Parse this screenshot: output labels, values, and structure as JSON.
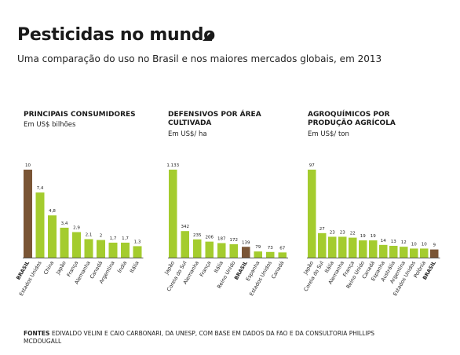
{
  "header": {
    "title": "Pesticidas no mundo",
    "subtitle": "Uma comparação do uso no Brasil e nos maiores mercados globais, em 2013"
  },
  "footer": {
    "source_label": "FONTES",
    "source_text": "EDIVALDO VELINI E CAIO CARBONARI, DA UNESP, COM BASE EM DADOS DA FAO E DA CONSULTORIA PHILLIPS MCDOUGALL"
  },
  "colors": {
    "brazil": "#7a5535",
    "others": "#a4cc2e",
    "axis": "#555555"
  },
  "chart_data": [
    {
      "type": "bar",
      "title": "PRINCIPAIS CONSUMIDORES",
      "unit": "Em US$ bilhões",
      "categories": [
        "BRASIL",
        "Estados Unidos",
        "China",
        "Japão",
        "França",
        "Alemanha",
        "Canadá",
        "Argentina",
        "Índia",
        "Itália"
      ],
      "values": [
        10,
        7.4,
        4.8,
        3.4,
        2.9,
        2.1,
        2,
        1.7,
        1.7,
        1.3
      ],
      "labels": [
        "10",
        "7,4",
        "4,8",
        "3,4",
        "2,9",
        "2,1",
        "2",
        "1,7",
        "1,7",
        "1,3"
      ],
      "highlight": "BRASIL",
      "ylim": [
        0,
        10
      ]
    },
    {
      "type": "bar",
      "title": "DEFENSIVOS POR ÁREA CULTIVADA",
      "unit": "Em US$/ ha",
      "categories": [
        "Japão",
        "Coreia do Sul",
        "Alemanha",
        "França",
        "Itália",
        "Reino Unido",
        "BRASIL",
        "Espanha",
        "Estados Unidos",
        "Canadá"
      ],
      "values": [
        1133,
        342,
        235,
        206,
        187,
        172,
        139,
        79,
        73,
        67
      ],
      "labels": [
        "1.133",
        "342",
        "235",
        "206",
        "187",
        "172",
        "139",
        "79",
        "73",
        "67"
      ],
      "highlight": "BRASIL",
      "ylim": [
        0,
        1133
      ]
    },
    {
      "type": "bar",
      "title": "AGROQUÍMICOS POR PRODUÇÃO AGRÍCOLA",
      "unit": "Em US$/ ton",
      "categories": [
        "Japão",
        "Coreia do Sul",
        "Itália",
        "Alemanha",
        "França",
        "Reino Unido",
        "Canadá",
        "Espanha",
        "Austrália",
        "Argentina",
        "Estados Unidos",
        "Polônia",
        "BRASIL"
      ],
      "values": [
        97,
        27,
        23,
        23,
        22,
        19,
        19,
        14,
        13,
        12,
        10,
        10,
        9
      ],
      "labels": [
        "97",
        "27",
        "23",
        "23",
        "22",
        "19",
        "19",
        "14",
        "13",
        "12",
        "10",
        "10",
        "9"
      ],
      "highlight": "BRASIL",
      "ylim": [
        0,
        97
      ]
    }
  ]
}
